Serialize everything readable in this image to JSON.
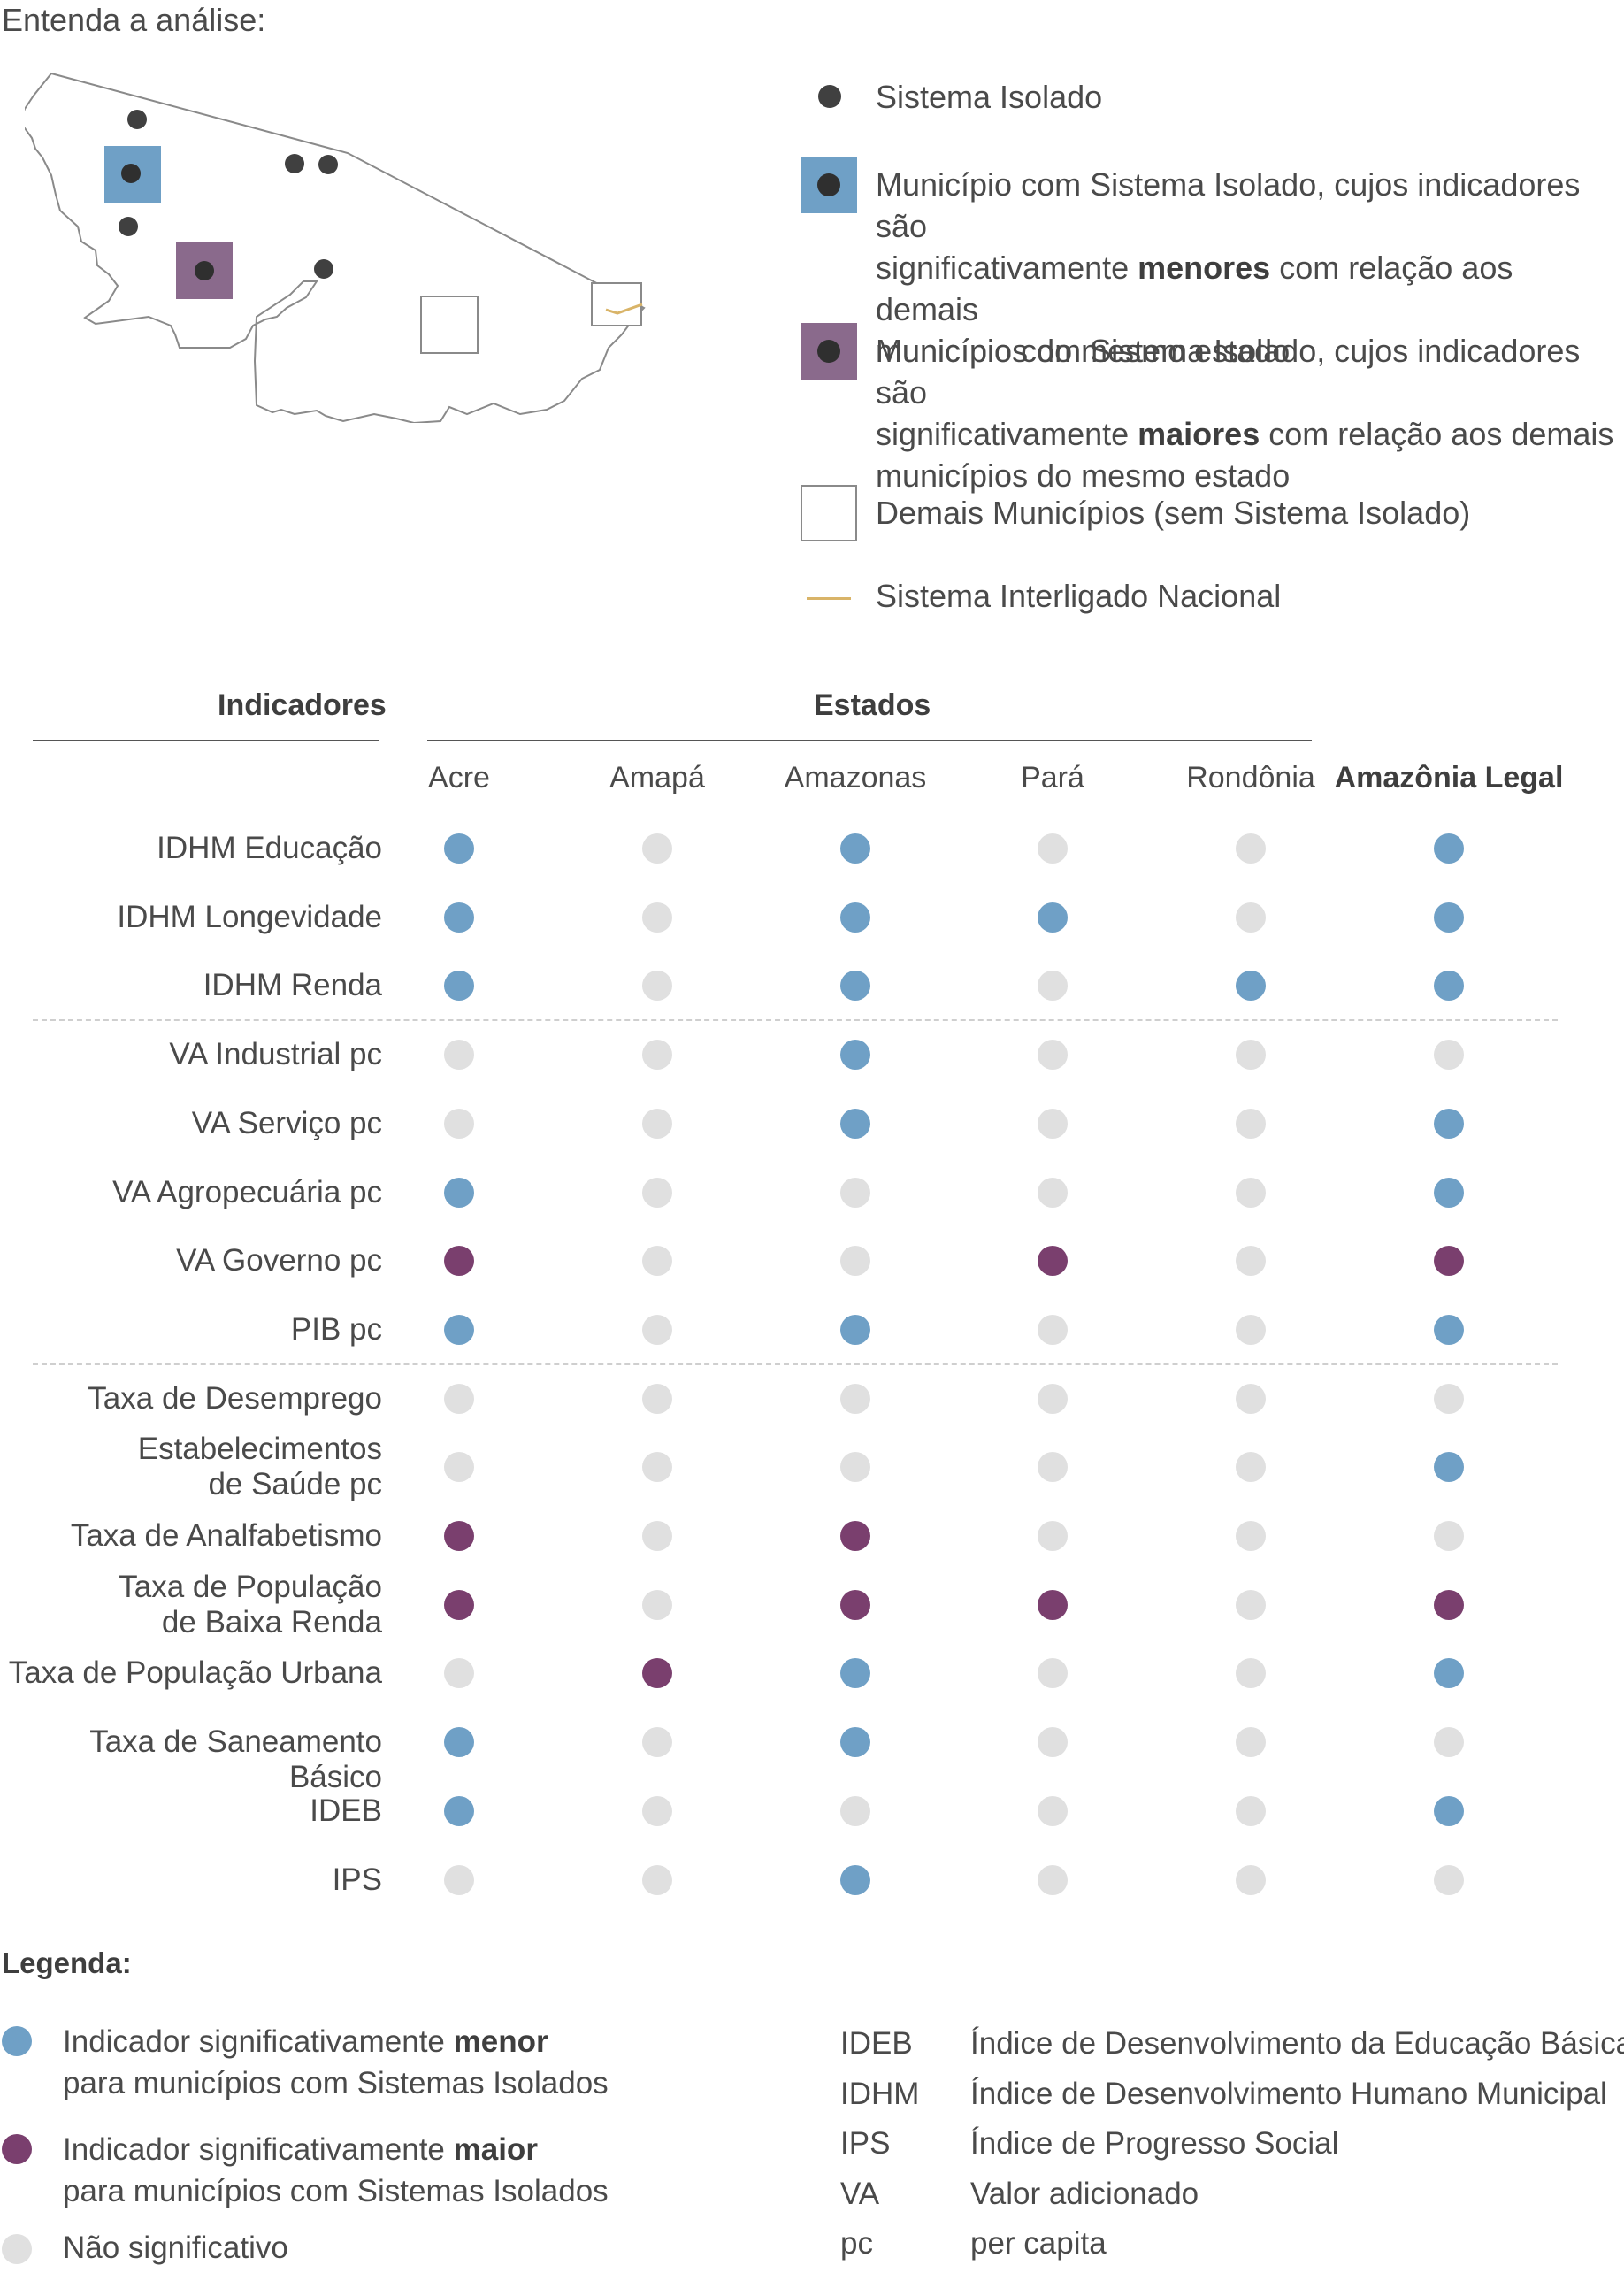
{
  "intro": "Entenda a análise:",
  "colors": {
    "lower": "#6fa0c6",
    "higher": "#7a3f6e",
    "ns": "#e0e0e0",
    "isolated": "#404040",
    "sin_line": "#d9b468"
  },
  "map_legend": {
    "isolated": "Sistema Isolado",
    "lower_1": "Município com Sistema Isolado, cujos indicadores são",
    "lower_2a": "significativamente ",
    "lower_2b": "menores",
    "lower_2c": " com relação aos demais",
    "lower_3": "municípios do mesmo estado",
    "higher_1": "Município com Sistema Isolado, cujos indicadores são",
    "higher_2a": "significativamente ",
    "higher_2b": "maiores",
    "higher_2c": " com relação aos demais",
    "higher_3": "municípios do mesmo estado",
    "other": "Demais Municípios (sem Sistema Isolado)",
    "sin": "Sistema Interligado Nacional"
  },
  "table": {
    "indicators_header": "Indicadores",
    "states_header": "Estados",
    "columns": [
      "Acre",
      "Amapá",
      "Amazonas",
      "Pará",
      "Rondônia",
      "Amazônia Legal"
    ],
    "rows": [
      {
        "label": [
          "IDHM Educação"
        ],
        "values": [
          "lower",
          "ns",
          "lower",
          "ns",
          "ns",
          "lower"
        ]
      },
      {
        "label": [
          "IDHM Longevidade"
        ],
        "values": [
          "lower",
          "ns",
          "lower",
          "lower",
          "ns",
          "lower"
        ]
      },
      {
        "label": [
          "IDHM Renda"
        ],
        "values": [
          "lower",
          "ns",
          "lower",
          "ns",
          "lower",
          "lower"
        ]
      },
      {
        "label": [
          "VA Industrial pc"
        ],
        "values": [
          "ns",
          "ns",
          "lower",
          "ns",
          "ns",
          "ns"
        ]
      },
      {
        "label": [
          "VA Serviço pc"
        ],
        "values": [
          "ns",
          "ns",
          "lower",
          "ns",
          "ns",
          "lower"
        ]
      },
      {
        "label": [
          "VA Agropecuária pc"
        ],
        "values": [
          "lower",
          "ns",
          "ns",
          "ns",
          "ns",
          "lower"
        ]
      },
      {
        "label": [
          "VA Governo pc"
        ],
        "values": [
          "higher",
          "ns",
          "ns",
          "higher",
          "ns",
          "higher"
        ]
      },
      {
        "label": [
          "PIB pc"
        ],
        "values": [
          "lower",
          "ns",
          "lower",
          "ns",
          "ns",
          "lower"
        ]
      },
      {
        "label": [
          "Taxa de Desemprego"
        ],
        "values": [
          "ns",
          "ns",
          "ns",
          "ns",
          "ns",
          "ns"
        ]
      },
      {
        "label": [
          "Estabelecimentos",
          "de Saúde pc"
        ],
        "values": [
          "ns",
          "ns",
          "ns",
          "ns",
          "ns",
          "lower"
        ]
      },
      {
        "label": [
          "Taxa de Analfabetismo"
        ],
        "values": [
          "higher",
          "ns",
          "higher",
          "ns",
          "ns",
          "ns"
        ]
      },
      {
        "label": [
          "Taxa de População",
          "de Baixa Renda"
        ],
        "values": [
          "higher",
          "ns",
          "higher",
          "higher",
          "ns",
          "higher"
        ]
      },
      {
        "label": [
          "Taxa de População Urbana"
        ],
        "values": [
          "ns",
          "higher",
          "lower",
          "ns",
          "ns",
          "lower"
        ]
      },
      {
        "label": [
          "Taxa de Saneamento Básico"
        ],
        "values": [
          "lower",
          "ns",
          "lower",
          "ns",
          "ns",
          "ns"
        ]
      },
      {
        "label": [
          "IDEB"
        ],
        "values": [
          "lower",
          "ns",
          "ns",
          "ns",
          "ns",
          "lower"
        ]
      },
      {
        "label": [
          "IPS"
        ],
        "values": [
          "ns",
          "ns",
          "lower",
          "ns",
          "ns",
          "ns"
        ]
      }
    ]
  },
  "legend": {
    "title": "Legenda:",
    "lower_a": "Indicador significativamente ",
    "lower_b": "menor",
    "lower_2": "para municípios com Sistemas Isolados",
    "higher_a": "Indicador significativamente ",
    "higher_b": "maior",
    "higher_2": "para municípios com Sistemas Isolados",
    "ns": "Não significativo"
  },
  "abbreviations": [
    {
      "key": "IDEB",
      "value": "Índice de Desenvolvimento da Educação Básica"
    },
    {
      "key": "IDHM",
      "value": "Índice de Desenvolvimento Humano Municipal"
    },
    {
      "key": "IPS",
      "value": "Índice de Progresso Social"
    },
    {
      "key": "VA",
      "value": "Valor adicionado"
    },
    {
      "key": "pc",
      "value": "per capita"
    }
  ]
}
